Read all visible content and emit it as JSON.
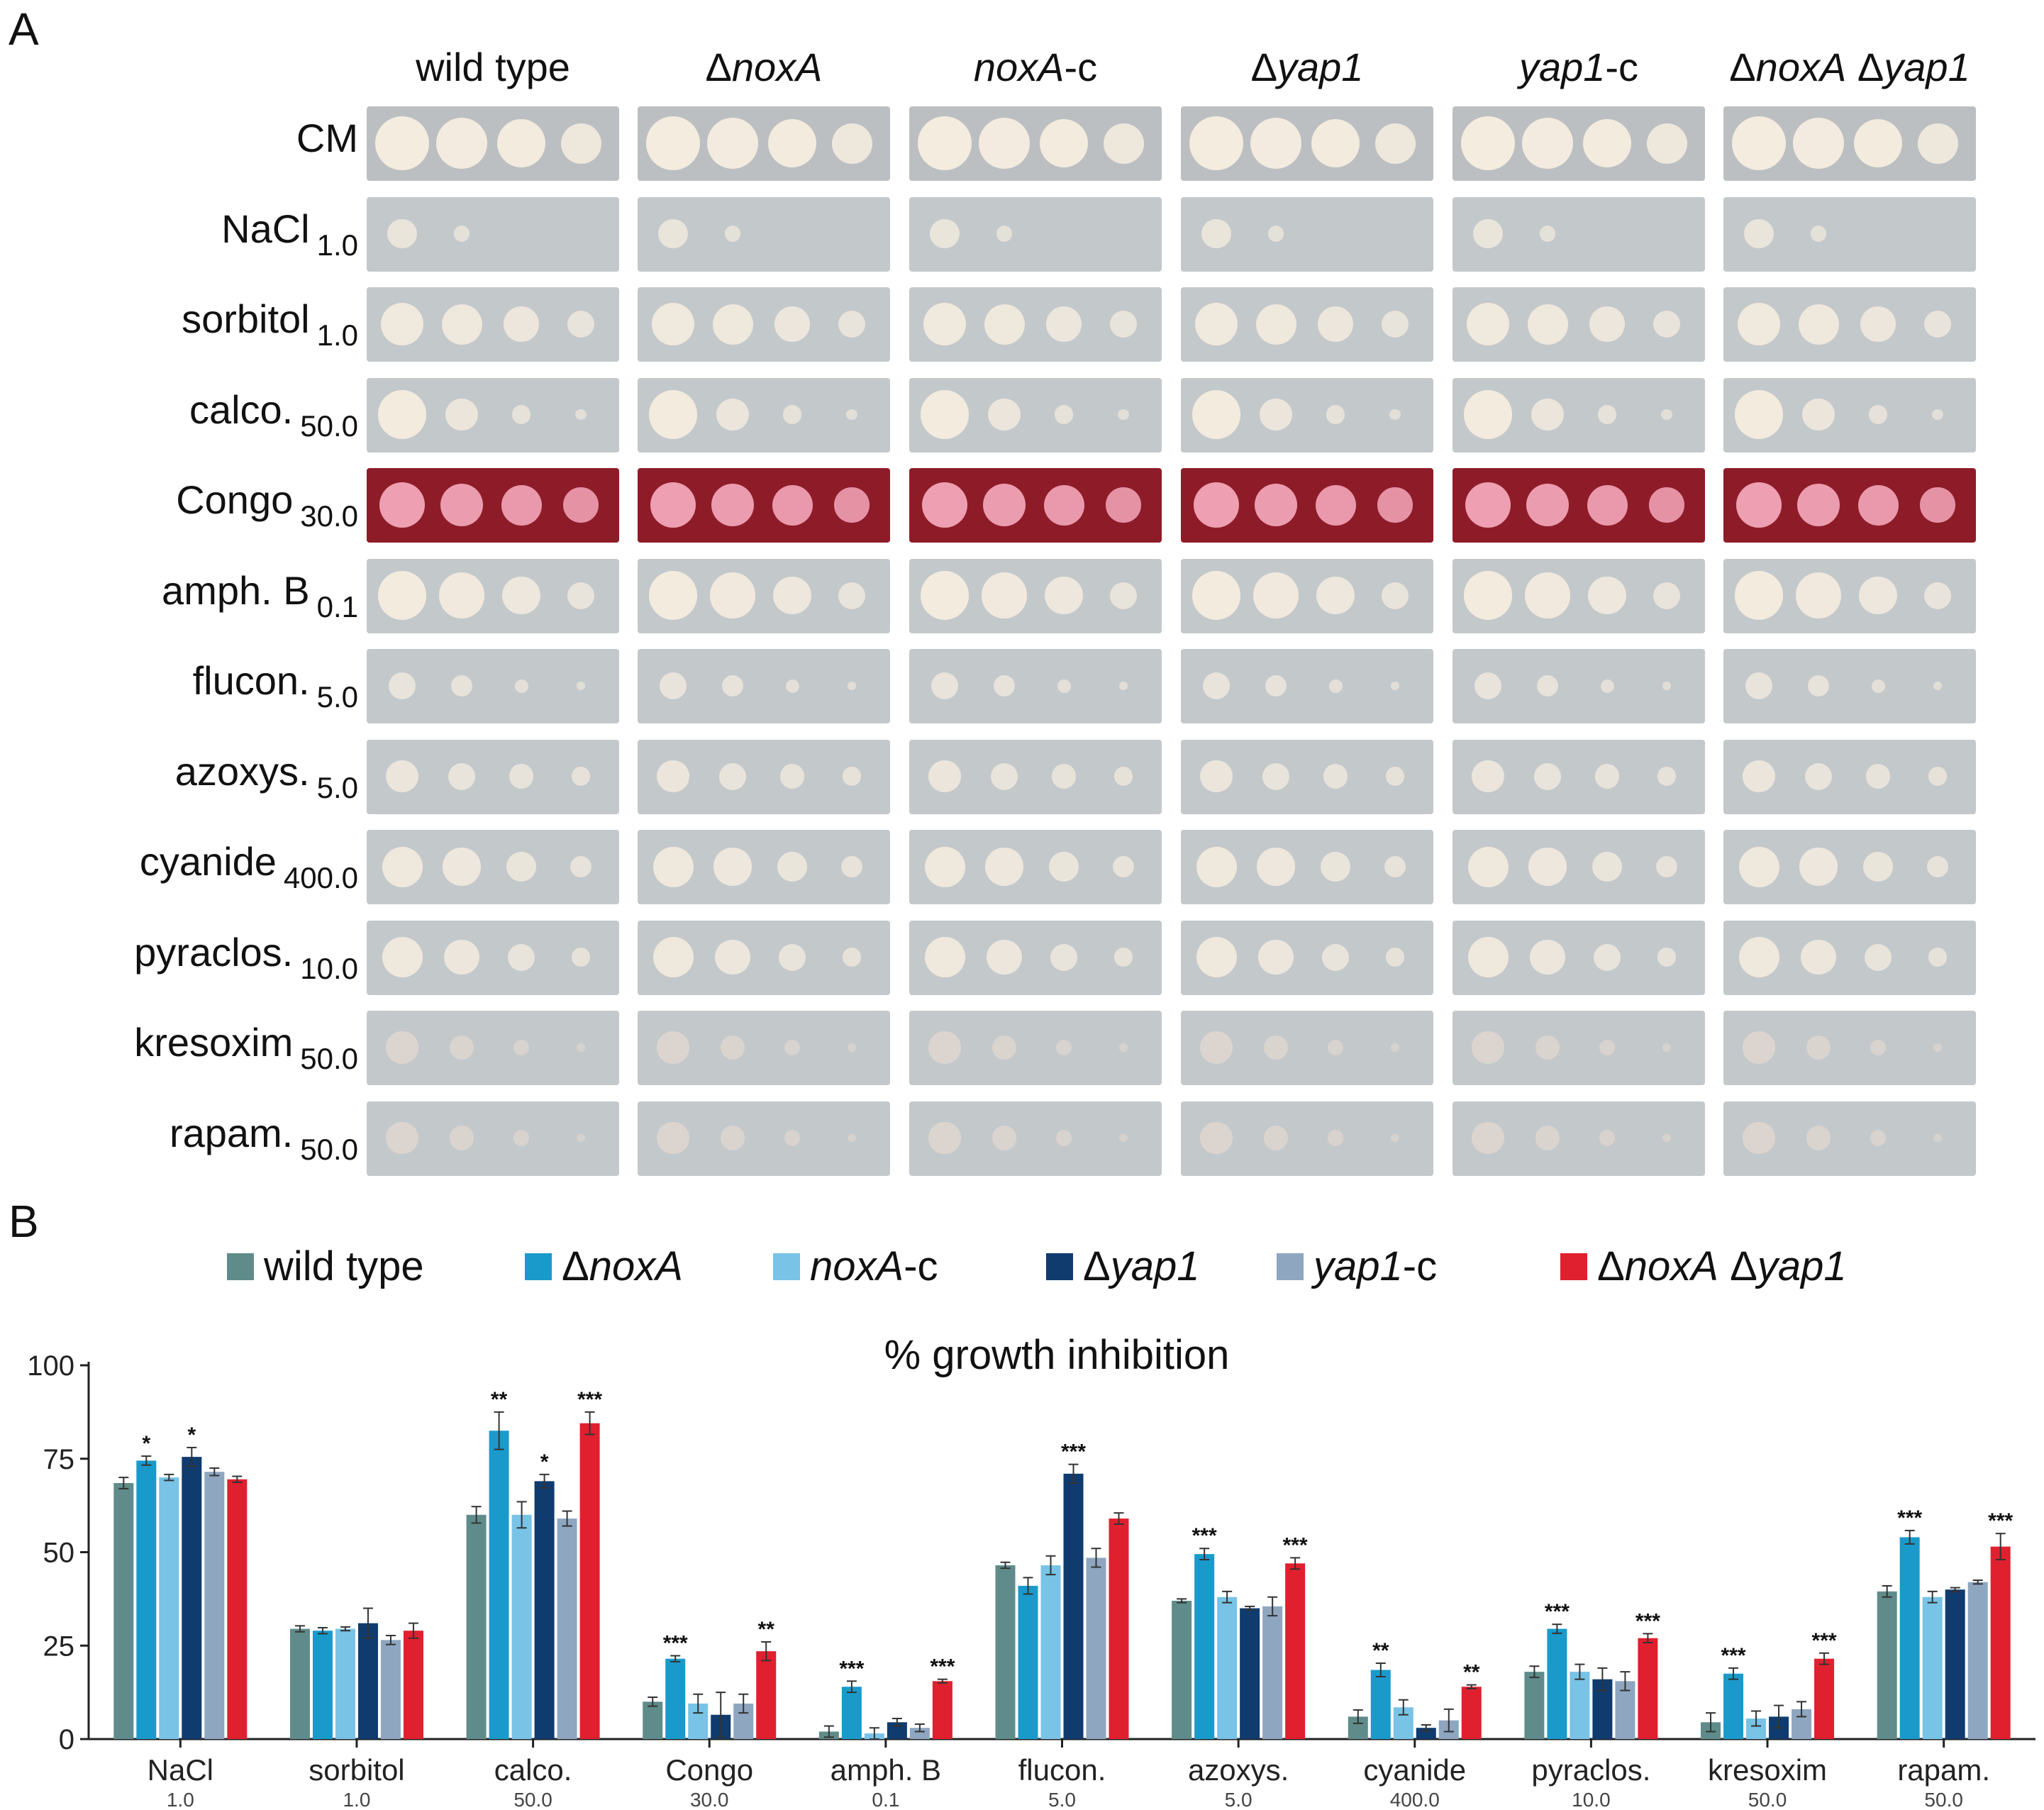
{
  "panel_a": {
    "letter": "A",
    "strains": [
      {
        "pre": "",
        "ital": "",
        "post": "wild type"
      },
      {
        "pre": "Δ",
        "ital": "noxA",
        "post": ""
      },
      {
        "pre": "",
        "ital": "noxA",
        "post": "-c"
      },
      {
        "pre": "Δ",
        "ital": "yap1",
        "post": ""
      },
      {
        "pre": "",
        "ital": "yap1",
        "post": "-c"
      },
      {
        "pre": "Δ",
        "ital": "noxA",
        "post": " Δyap1"
      }
    ],
    "conditions": [
      {
        "name": "CM",
        "conc": ""
      },
      {
        "name": "NaCl",
        "conc": "1.0"
      },
      {
        "name": "sorbitol",
        "conc": "1.0"
      },
      {
        "name": "calco.",
        "conc": "50.0"
      },
      {
        "name": "Congo",
        "conc": "30.0"
      },
      {
        "name": "amph. B",
        "conc": "0.1"
      },
      {
        "name": "flucon.",
        "conc": "5.0"
      },
      {
        "name": "azoxys.",
        "conc": "5.0"
      },
      {
        "name": "cyanide",
        "conc": "400.0"
      },
      {
        "name": "pyraclos.",
        "conc": "10.0"
      },
      {
        "name": "kresoxim",
        "conc": "50.0"
      },
      {
        "name": "rapam.",
        "conc": "50.0"
      }
    ]
  },
  "panel_b": {
    "letter": "B",
    "legend": [
      {
        "pre": "",
        "ital": "",
        "post": "wild type",
        "color": "#5f8c8a"
      },
      {
        "pre": "Δ",
        "ital": "noxA",
        "post": "",
        "color": "#1a9acb"
      },
      {
        "pre": "",
        "ital": "noxA",
        "post": "-c",
        "color": "#78c3e6"
      },
      {
        "pre": "Δ",
        "ital": "yap1",
        "post": "",
        "color": "#0f3b6e"
      },
      {
        "pre": "",
        "ital": "yap1",
        "post": "-c",
        "color": "#8ea6c0"
      },
      {
        "pre": "Δ",
        "ital": "noxA",
        "post": " Δyap1",
        "color": "#e0202e"
      }
    ]
  },
  "chart_data": {
    "type": "bar",
    "title": "% growth inhibition",
    "xlabel": "",
    "ylabel": "",
    "ylim": [
      0,
      100
    ],
    "yticks": [
      0,
      25,
      50,
      75,
      100
    ],
    "categories": [
      "NaCl",
      "sorbitol",
      "calco.",
      "Congo",
      "amph. B",
      "flucon.",
      "azoxys.",
      "cyanide",
      "pyraclos.",
      "kresoxim",
      "rapam."
    ],
    "category_sublabels": [
      "1.0",
      "1.0",
      "50.0",
      "30.0",
      "0.1",
      "5.0",
      "5.0",
      "400.0",
      "10.0",
      "50.0",
      "50.0"
    ],
    "series": [
      {
        "name": "wild type",
        "color": "#5f8c8a",
        "values": [
          68.5,
          29.5,
          60,
          10,
          2,
          46.5,
          37,
          6,
          18,
          4.5,
          39.5
        ],
        "errors": [
          1.5,
          0.8,
          2.2,
          1.2,
          1.5,
          0.8,
          0.5,
          1.8,
          1.5,
          2.5,
          1.5
        ],
        "sig": [
          "",
          "",
          "",
          "",
          "",
          "",
          "",
          "",
          "",
          "",
          ""
        ]
      },
      {
        "name": "ΔnoxA",
        "color": "#1a9acb",
        "values": [
          74.5,
          29,
          82.5,
          21.5,
          14,
          41,
          49.5,
          18.5,
          29.5,
          17.5,
          54
        ],
        "errors": [
          1.2,
          0.8,
          5,
          0.8,
          1.5,
          2.2,
          1.5,
          1.8,
          1.2,
          1.5,
          1.8
        ],
        "sig": [
          "*",
          "",
          "**",
          "***",
          "***",
          "",
          "***",
          "**",
          "***",
          "***",
          "***"
        ]
      },
      {
        "name": "noxA-c",
        "color": "#78c3e6",
        "values": [
          70,
          29.5,
          60,
          9.5,
          1.5,
          46.5,
          38,
          8.5,
          18,
          5.5,
          38
        ],
        "errors": [
          0.8,
          0.5,
          3.5,
          2.5,
          1.5,
          2.5,
          1.5,
          2,
          2,
          2,
          1.5
        ],
        "sig": [
          "",
          "",
          "",
          "",
          "",
          "",
          "",
          "",
          "",
          "",
          ""
        ]
      },
      {
        "name": "Δyap1",
        "color": "#0f3b6e",
        "values": [
          75.5,
          31,
          69,
          6.5,
          4.5,
          71,
          35,
          3,
          16,
          6,
          40
        ],
        "errors": [
          2.5,
          4,
          1.8,
          6,
          1,
          2.5,
          0.5,
          0.8,
          3,
          3,
          0.5
        ],
        "sig": [
          "*",
          "",
          "*",
          "",
          "",
          "***",
          "",
          "",
          "",
          "",
          ""
        ]
      },
      {
        "name": "yap1-c",
        "color": "#8ea6c0",
        "values": [
          71.5,
          26.5,
          59,
          9.5,
          3,
          48.5,
          35.5,
          5,
          15.5,
          8,
          42
        ],
        "errors": [
          1,
          1.2,
          2,
          2.5,
          1,
          2.5,
          2.5,
          3,
          2.5,
          2,
          0.5
        ],
        "sig": [
          "",
          "",
          "",
          "",
          "",
          "",
          "",
          "",
          "",
          "",
          ""
        ]
      },
      {
        "name": "ΔnoxA Δyap1",
        "color": "#e0202e",
        "values": [
          69.5,
          29,
          84.5,
          23.5,
          15.5,
          59,
          47,
          14,
          27,
          21.5,
          51.5
        ],
        "errors": [
          0.8,
          2,
          3,
          2.5,
          0.5,
          1.5,
          1.5,
          0.5,
          1.2,
          1.5,
          3.5
        ],
        "sig": [
          "",
          "",
          "***",
          "**",
          "***",
          "",
          "***",
          "**",
          "***",
          "***",
          "***"
        ]
      }
    ]
  }
}
